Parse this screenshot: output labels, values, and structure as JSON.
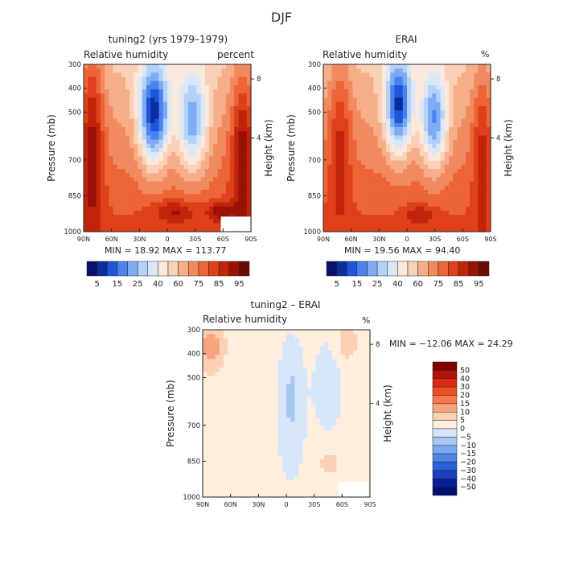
{
  "figure": {
    "title": "DJF"
  },
  "chart_data": [
    {
      "id": "p1",
      "type": "heatmap",
      "title": "tuning2 (yrs 1979–1979)",
      "left_label": "Relative humidity",
      "right_label": "percent",
      "ylabel": "Pressure (mb)",
      "y2label": "Height (km)",
      "xticks": [
        "90N",
        "60N",
        "30N",
        "0",
        "30S",
        "60S",
        "90S"
      ],
      "yticks": [
        {
          "p": 300,
          "label": "300"
        },
        {
          "p": 400,
          "label": "400"
        },
        {
          "p": 500,
          "label": "500"
        },
        {
          "p": 700,
          "label": "700"
        },
        {
          "p": 850,
          "label": "850"
        },
        {
          "p": 1000,
          "label": "1000"
        }
      ],
      "y2ticks": [
        {
          "km": 8,
          "label": "8"
        },
        {
          "km": 4,
          "label": "4"
        }
      ],
      "minmax": "MIN =   18.92   MAX =  113.77",
      "colorbar": {
        "orientation": "horizontal",
        "labels": [
          "5",
          "15",
          "25",
          "40",
          "60",
          "75",
          "85",
          "95"
        ]
      },
      "xlim": [
        90,
        -90
      ],
      "ylim": [
        300,
        1000
      ]
    },
    {
      "id": "p2",
      "type": "heatmap",
      "title": "ERAI",
      "left_label": "Relative humidity",
      "right_label": "%",
      "ylabel": "Pressure (mb)",
      "y2label": "Height (km)",
      "xticks": [
        "90N",
        "60N",
        "30N",
        "0",
        "30S",
        "60S",
        "90S"
      ],
      "yticks": [
        {
          "p": 300,
          "label": "300"
        },
        {
          "p": 400,
          "label": "400"
        },
        {
          "p": 500,
          "label": "500"
        },
        {
          "p": 700,
          "label": "700"
        },
        {
          "p": 850,
          "label": "850"
        },
        {
          "p": 1000,
          "label": "1000"
        }
      ],
      "y2ticks": [
        {
          "km": 8,
          "label": "8"
        },
        {
          "km": 4,
          "label": "4"
        }
      ],
      "minmax": "MIN =   19.56   MAX =   94.40",
      "colorbar": {
        "orientation": "horizontal",
        "labels": [
          "5",
          "15",
          "25",
          "40",
          "60",
          "75",
          "85",
          "95"
        ]
      },
      "xlim": [
        90,
        -90
      ],
      "ylim": [
        300,
        1000
      ]
    },
    {
      "id": "p3",
      "type": "heatmap",
      "title": "tuning2 – ERAI",
      "left_label": "Relative humidity",
      "right_label": "%",
      "ylabel": "Pressure (mb)",
      "y2label": "Height (km)",
      "xticks": [
        "90N",
        "60N",
        "30N",
        "0",
        "30S",
        "60S",
        "90S"
      ],
      "yticks": [
        {
          "p": 300,
          "label": "300"
        },
        {
          "p": 400,
          "label": "400"
        },
        {
          "p": 500,
          "label": "500"
        },
        {
          "p": 700,
          "label": "700"
        },
        {
          "p": 850,
          "label": "850"
        },
        {
          "p": 1000,
          "label": "1000"
        }
      ],
      "y2ticks": [
        {
          "km": 8,
          "label": "8"
        },
        {
          "km": 4,
          "label": "4"
        }
      ],
      "minmax": "MIN = −12.06   MAX =   24.29",
      "colorbar": {
        "orientation": "vertical",
        "labels": [
          "50",
          "40",
          "30",
          "20",
          "15",
          "10",
          "5",
          "0",
          "−5",
          "−10",
          "−15",
          "−20",
          "−30",
          "−40",
          "−50"
        ]
      },
      "xlim": [
        90,
        -90
      ],
      "ylim": [
        300,
        1000
      ]
    }
  ],
  "colors": {
    "abs_scale": [
      "#08106e",
      "#0a2ea0",
      "#1f56d8",
      "#4a83f0",
      "#7eacf4",
      "#b4d2f6",
      "#dae8f6",
      "#fbe8dc",
      "#fad1b6",
      "#f6ae88",
      "#f28a60",
      "#ec6437",
      "#de4019",
      "#c2230b",
      "#9a1205",
      "#6c0a02"
    ],
    "diff_scale": [
      "#7e0000",
      "#b2120a",
      "#da2a12",
      "#ee5025",
      "#f57a48",
      "#f9a47e",
      "#fcd0b4",
      "#fdeede",
      "#d6e6fa",
      "#a8c8f4",
      "#7aa8ee",
      "#4e86e8",
      "#2a60dc",
      "#1c40c4",
      "#0a1e96",
      "#001070"
    ]
  }
}
